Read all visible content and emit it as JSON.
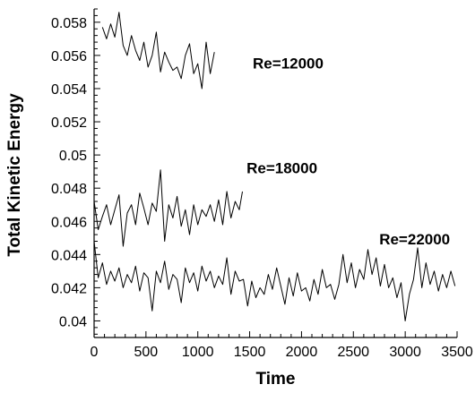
{
  "chart_data": {
    "type": "line",
    "xlabel": "Time",
    "ylabel": "Total Kinetic Energy",
    "xlim": [
      0,
      3500
    ],
    "ylim": [
      0.039,
      0.0588
    ],
    "x_ticks": [
      0,
      500,
      1000,
      1500,
      2000,
      2500,
      3000,
      3500
    ],
    "y_ticks": [
      0.04,
      0.042,
      0.044,
      0.046,
      0.048,
      0.05,
      0.052,
      0.054,
      0.056,
      0.058
    ],
    "x_tick_labels": [
      "0",
      "500",
      "1000",
      "1500",
      "2000",
      "2500",
      "3000",
      "3500"
    ],
    "y_tick_labels": [
      "0.04",
      "0.042",
      "0.044",
      "0.046",
      "0.048",
      "0.05",
      "0.052",
      "0.054",
      "0.056",
      "0.058"
    ],
    "grid": false,
    "legend": "none",
    "annotations": [
      {
        "text": "Re=12000",
        "x": 1530,
        "y": 0.0552
      },
      {
        "text": "Re=18000",
        "x": 1470,
        "y": 0.0489
      },
      {
        "text": "Re=22000",
        "x": 2750,
        "y": 0.0446
      }
    ],
    "series": [
      {
        "x": [
          80,
          120,
          160,
          200,
          240,
          280,
          320,
          360,
          400,
          440,
          480,
          520,
          560,
          600,
          640,
          680,
          720,
          760,
          800,
          840,
          880,
          920,
          960,
          1000,
          1040,
          1080,
          1120,
          1160
        ],
        "values": [
          0.0577,
          0.057,
          0.0579,
          0.0571,
          0.0586,
          0.0566,
          0.056,
          0.0572,
          0.0563,
          0.0557,
          0.0568,
          0.0553,
          0.056,
          0.0574,
          0.055,
          0.0562,
          0.0556,
          0.0551,
          0.0553,
          0.0546,
          0.056,
          0.0567,
          0.0549,
          0.0555,
          0.054,
          0.0568,
          0.0549,
          0.0562
        ]
      },
      {
        "x": [
          0,
          40,
          80,
          120,
          160,
          200,
          240,
          280,
          320,
          360,
          400,
          440,
          480,
          520,
          560,
          600,
          640,
          680,
          720,
          760,
          800,
          840,
          880,
          920,
          960,
          1000,
          1040,
          1080,
          1120,
          1160,
          1200,
          1240,
          1280,
          1320,
          1360,
          1400,
          1430
        ],
        "values": [
          0.0472,
          0.0455,
          0.0463,
          0.047,
          0.0458,
          0.0467,
          0.0476,
          0.0445,
          0.0465,
          0.047,
          0.0458,
          0.0477,
          0.0468,
          0.0458,
          0.0471,
          0.0466,
          0.0491,
          0.0448,
          0.047,
          0.0462,
          0.0475,
          0.0457,
          0.0467,
          0.0452,
          0.047,
          0.0458,
          0.0467,
          0.0463,
          0.047,
          0.046,
          0.0473,
          0.0458,
          0.0478,
          0.0462,
          0.0472,
          0.0467,
          0.0478
        ]
      },
      {
        "x": [
          0,
          40,
          80,
          120,
          160,
          200,
          240,
          280,
          320,
          360,
          400,
          440,
          480,
          520,
          560,
          600,
          640,
          680,
          720,
          760,
          800,
          840,
          880,
          920,
          960,
          1000,
          1040,
          1080,
          1120,
          1160,
          1200,
          1240,
          1280,
          1320,
          1360,
          1400,
          1440,
          1480,
          1520,
          1560,
          1600,
          1640,
          1680,
          1720,
          1760,
          1800,
          1840,
          1880,
          1920,
          1960,
          2000,
          2040,
          2080,
          2120,
          2160,
          2200,
          2240,
          2280,
          2320,
          2360,
          2400,
          2440,
          2480,
          2520,
          2560,
          2600,
          2640,
          2680,
          2720,
          2760,
          2800,
          2840,
          2880,
          2920,
          2960,
          3000,
          3040,
          3080,
          3120,
          3160,
          3200,
          3240,
          3280,
          3320,
          3360,
          3400,
          3440,
          3480
        ],
        "values": [
          0.0448,
          0.0426,
          0.0435,
          0.0422,
          0.043,
          0.0424,
          0.0432,
          0.042,
          0.0428,
          0.0423,
          0.0433,
          0.0418,
          0.0429,
          0.0426,
          0.0406,
          0.043,
          0.0423,
          0.0436,
          0.0419,
          0.0428,
          0.0425,
          0.0411,
          0.0432,
          0.0423,
          0.0429,
          0.0418,
          0.0433,
          0.0424,
          0.043,
          0.042,
          0.0427,
          0.0422,
          0.0438,
          0.0416,
          0.043,
          0.0424,
          0.0425,
          0.0409,
          0.0424,
          0.0414,
          0.042,
          0.0416,
          0.0428,
          0.0419,
          0.0432,
          0.0421,
          0.041,
          0.0426,
          0.0415,
          0.0429,
          0.0418,
          0.042,
          0.0412,
          0.0425,
          0.0416,
          0.0431,
          0.042,
          0.0422,
          0.0413,
          0.0422,
          0.044,
          0.0423,
          0.0435,
          0.042,
          0.0431,
          0.0425,
          0.0443,
          0.0428,
          0.0438,
          0.0421,
          0.0434,
          0.042,
          0.0426,
          0.0414,
          0.0423,
          0.04,
          0.0416,
          0.0425,
          0.0444,
          0.042,
          0.0435,
          0.0422,
          0.043,
          0.0418,
          0.0428,
          0.042,
          0.043,
          0.0421
        ]
      }
    ]
  }
}
